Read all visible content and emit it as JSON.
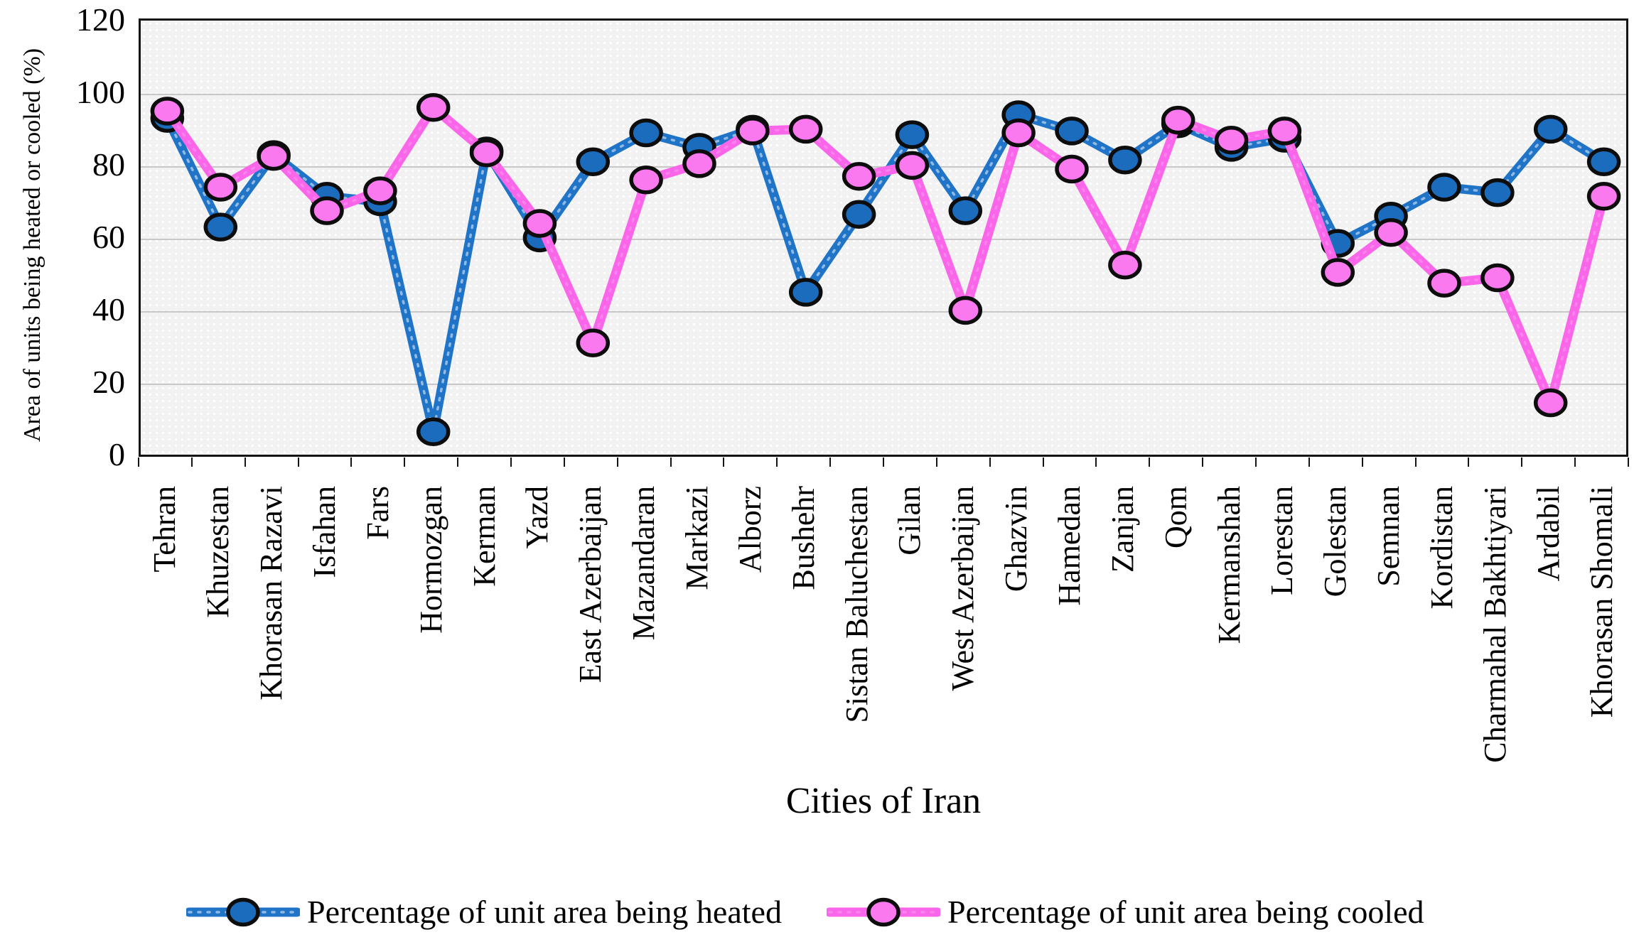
{
  "chart_data": {
    "type": "line",
    "title": "",
    "xlabel": "Cities of Iran",
    "ylabel": "Area of units being heated or cooled (%)",
    "ylim": [
      0,
      120
    ],
    "yticks": [
      0,
      20,
      40,
      60,
      80,
      100,
      120
    ],
    "grid": true,
    "legend_position": "bottom",
    "plot_background": "#f2f2f2",
    "gridline_color": "#c8c8c8",
    "categories": [
      "Tehran",
      "Khuzestan",
      "Khorasan Razavi",
      "Isfahan",
      "Fars",
      "Hormozgan",
      "Kerman",
      "Yazd",
      "East Azerbaijan",
      "Mazandaran",
      "Markazi",
      "Alborz",
      "Bushehr",
      "Sistan Baluchestan",
      "Gilan",
      "West Azerbaijan",
      "Ghazvin",
      "Hamedan",
      "Zanjan",
      "Qom",
      "Kermanshah",
      "Lorestan",
      "Golestan",
      "Semnan",
      "Kordistan",
      "Charmahal Bakhtiyari",
      "Ardabil",
      "Khorasan Shomali"
    ],
    "series": [
      {
        "name": "Percentage of unit area being heated",
        "color": "#2074c8",
        "marker_fill": "#1c6cbe",
        "values": [
          94,
          64,
          84,
          72.5,
          71,
          7.5,
          85,
          61,
          82,
          90,
          86,
          91,
          46,
          67.5,
          89.5,
          68.5,
          95,
          90.5,
          82.5,
          92.5,
          86,
          88.5,
          59.5,
          67,
          75,
          73.5,
          91,
          82
        ]
      },
      {
        "name": "Percentage of unit area being cooled",
        "color": "#fa66ea",
        "marker_fill": "#fa79ef",
        "values": [
          96,
          75,
          83.5,
          68.5,
          74,
          97,
          84.5,
          65,
          32,
          77,
          81.5,
          90.5,
          91,
          78,
          81,
          41,
          90,
          80,
          53.5,
          93.5,
          88,
          90.5,
          51.5,
          62.5,
          48.5,
          50,
          15.5,
          72.5
        ]
      }
    ]
  }
}
